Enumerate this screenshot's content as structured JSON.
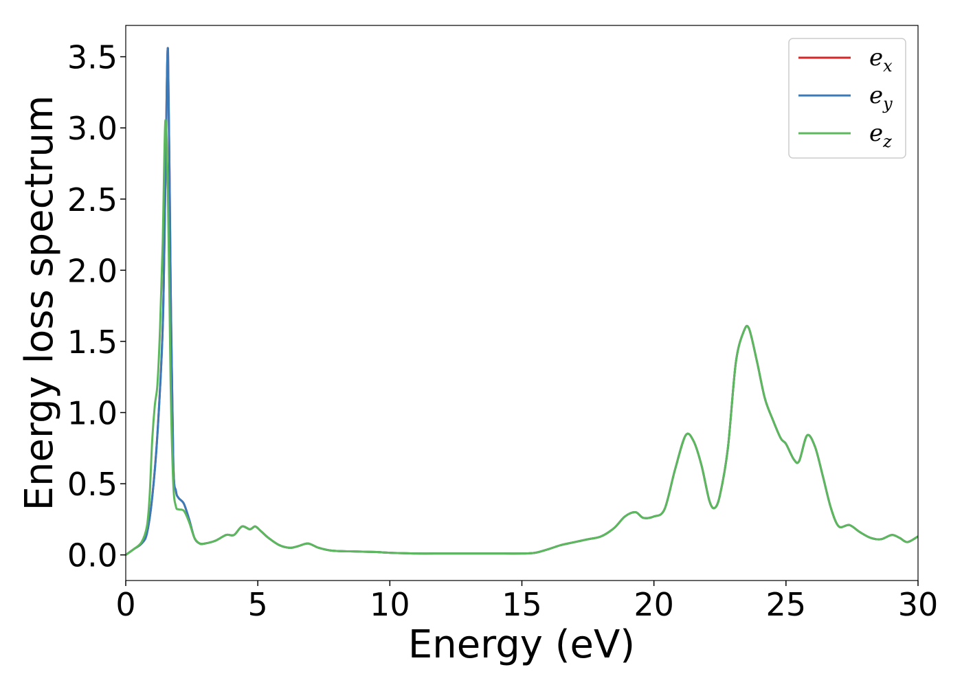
{
  "chart_data": {
    "type": "line",
    "title": "",
    "xlabel": "Energy (eV)",
    "ylabel": "Energy loss spectrum",
    "xlim": [
      0,
      30
    ],
    "ylim": [
      -0.18,
      3.72
    ],
    "x_ticks": [
      0,
      5,
      10,
      15,
      20,
      25,
      30
    ],
    "y_ticks": [
      0.0,
      0.5,
      1.0,
      1.5,
      2.0,
      2.5,
      3.0,
      3.5
    ],
    "x_tick_labels": [
      "0",
      "5",
      "10",
      "15",
      "20",
      "25",
      "30"
    ],
    "y_tick_labels": [
      "0.0",
      "0.5",
      "1.0",
      "1.5",
      "2.0",
      "2.5",
      "3.0",
      "3.5"
    ],
    "grid": false,
    "legend": {
      "position": "top-right",
      "entries": [
        {
          "base": "e",
          "sub": "x",
          "color": "#d62728"
        },
        {
          "base": "e",
          "sub": "y",
          "color": "#3a7ab8"
        },
        {
          "base": "e",
          "sub": "z",
          "color": "#5cb85c"
        }
      ]
    },
    "series": [
      {
        "color": "#d62728",
        "x": [
          0,
          0.3,
          0.6,
          0.8,
          1.0,
          1.2,
          1.4,
          1.5,
          1.6,
          1.7,
          1.8,
          1.9,
          2.0,
          2.2,
          2.4,
          2.6,
          2.8,
          3.0,
          3.4,
          3.8,
          4.1,
          4.4,
          4.7,
          4.9,
          5.1,
          5.4,
          5.8,
          6.2,
          6.5,
          6.9,
          7.3,
          7.8,
          8.5,
          9.5,
          10,
          11,
          12,
          13,
          14,
          15,
          15.5,
          16,
          16.5,
          17,
          17.5,
          18,
          18.5,
          18.9,
          19.3,
          19.6,
          20,
          20.4,
          20.8,
          21.2,
          21.5,
          21.8,
          22.1,
          22.3,
          22.5,
          22.8,
          23.1,
          23.4,
          23.6,
          23.9,
          24.2,
          24.5,
          24.8,
          25.0,
          25.3,
          25.5,
          25.8,
          26.1,
          26.4,
          26.7,
          27.0,
          27.4,
          27.8,
          28.2,
          28.6,
          29.0,
          29.3,
          29.6,
          30.0
        ],
        "y": [
          0.0,
          0.04,
          0.08,
          0.15,
          0.4,
          0.85,
          1.6,
          2.6,
          3.55,
          1.9,
          0.65,
          0.45,
          0.4,
          0.36,
          0.25,
          0.12,
          0.08,
          0.08,
          0.1,
          0.14,
          0.14,
          0.2,
          0.18,
          0.2,
          0.17,
          0.12,
          0.07,
          0.05,
          0.06,
          0.08,
          0.05,
          0.03,
          0.025,
          0.02,
          0.015,
          0.01,
          0.01,
          0.01,
          0.01,
          0.01,
          0.015,
          0.04,
          0.07,
          0.09,
          0.11,
          0.13,
          0.19,
          0.27,
          0.3,
          0.26,
          0.27,
          0.32,
          0.6,
          0.84,
          0.8,
          0.63,
          0.38,
          0.33,
          0.42,
          0.75,
          1.35,
          1.57,
          1.59,
          1.36,
          1.1,
          0.95,
          0.82,
          0.78,
          0.67,
          0.66,
          0.84,
          0.76,
          0.55,
          0.33,
          0.2,
          0.21,
          0.16,
          0.12,
          0.11,
          0.14,
          0.12,
          0.09,
          0.13
        ]
      },
      {
        "color": "#3a7ab8",
        "x": [
          0,
          0.3,
          0.6,
          0.8,
          1.0,
          1.2,
          1.4,
          1.5,
          1.6,
          1.7,
          1.8,
          1.9,
          2.0,
          2.2,
          2.4,
          2.6,
          2.8,
          3.0,
          3.4,
          3.8,
          4.1,
          4.4,
          4.7,
          4.9,
          5.1,
          5.4,
          5.8,
          6.2,
          6.5,
          6.9,
          7.3,
          7.8,
          8.5,
          9.5,
          10,
          11,
          12,
          13,
          14,
          15,
          15.5,
          16,
          16.5,
          17,
          17.5,
          18,
          18.5,
          18.9,
          19.3,
          19.6,
          20,
          20.4,
          20.8,
          21.2,
          21.5,
          21.8,
          22.1,
          22.3,
          22.5,
          22.8,
          23.1,
          23.4,
          23.6,
          23.9,
          24.2,
          24.5,
          24.8,
          25.0,
          25.3,
          25.5,
          25.8,
          26.1,
          26.4,
          26.7,
          27.0,
          27.4,
          27.8,
          28.2,
          28.6,
          29.0,
          29.3,
          29.6,
          30.0
        ],
        "y": [
          0.0,
          0.04,
          0.08,
          0.15,
          0.4,
          0.85,
          1.6,
          2.6,
          3.55,
          1.9,
          0.65,
          0.45,
          0.4,
          0.36,
          0.25,
          0.12,
          0.08,
          0.08,
          0.1,
          0.14,
          0.14,
          0.2,
          0.18,
          0.2,
          0.17,
          0.12,
          0.07,
          0.05,
          0.06,
          0.08,
          0.05,
          0.03,
          0.025,
          0.02,
          0.015,
          0.01,
          0.01,
          0.01,
          0.01,
          0.01,
          0.015,
          0.04,
          0.07,
          0.09,
          0.11,
          0.13,
          0.19,
          0.27,
          0.3,
          0.26,
          0.27,
          0.32,
          0.6,
          0.84,
          0.8,
          0.63,
          0.38,
          0.33,
          0.42,
          0.75,
          1.35,
          1.57,
          1.59,
          1.36,
          1.1,
          0.95,
          0.82,
          0.78,
          0.67,
          0.66,
          0.84,
          0.76,
          0.55,
          0.33,
          0.2,
          0.21,
          0.16,
          0.12,
          0.11,
          0.14,
          0.12,
          0.09,
          0.13
        ]
      },
      {
        "color": "#5cb85c",
        "x": [
          0,
          0.3,
          0.6,
          0.8,
          0.9,
          1.0,
          1.1,
          1.2,
          1.3,
          1.4,
          1.5,
          1.6,
          1.7,
          1.8,
          1.9,
          2.0,
          2.2,
          2.4,
          2.6,
          2.8,
          3.0,
          3.4,
          3.8,
          4.1,
          4.4,
          4.7,
          4.9,
          5.1,
          5.4,
          5.8,
          6.2,
          6.5,
          6.9,
          7.3,
          7.8,
          8.5,
          9.5,
          10,
          11,
          12,
          13,
          14,
          15,
          15.5,
          16,
          16.5,
          17,
          17.5,
          18,
          18.5,
          18.9,
          19.3,
          19.6,
          20,
          20.4,
          20.8,
          21.2,
          21.5,
          21.8,
          22.1,
          22.3,
          22.5,
          22.8,
          23.1,
          23.4,
          23.6,
          23.9,
          24.2,
          24.5,
          24.8,
          25.0,
          25.3,
          25.5,
          25.8,
          26.1,
          26.4,
          26.7,
          27.0,
          27.4,
          27.8,
          28.2,
          28.6,
          29.0,
          29.3,
          29.6,
          30.0
        ],
        "y": [
          0.0,
          0.04,
          0.09,
          0.2,
          0.4,
          0.8,
          1.05,
          1.2,
          1.6,
          2.2,
          3.05,
          2.5,
          1.2,
          0.5,
          0.34,
          0.32,
          0.31,
          0.23,
          0.12,
          0.08,
          0.08,
          0.1,
          0.14,
          0.14,
          0.2,
          0.18,
          0.2,
          0.17,
          0.12,
          0.07,
          0.05,
          0.06,
          0.08,
          0.05,
          0.03,
          0.025,
          0.02,
          0.015,
          0.01,
          0.01,
          0.01,
          0.01,
          0.01,
          0.015,
          0.04,
          0.07,
          0.09,
          0.11,
          0.13,
          0.19,
          0.27,
          0.3,
          0.26,
          0.27,
          0.32,
          0.6,
          0.84,
          0.8,
          0.63,
          0.38,
          0.33,
          0.42,
          0.75,
          1.35,
          1.57,
          1.59,
          1.36,
          1.1,
          0.95,
          0.82,
          0.78,
          0.67,
          0.66,
          0.84,
          0.76,
          0.55,
          0.33,
          0.2,
          0.21,
          0.16,
          0.12,
          0.11,
          0.14,
          0.12,
          0.09,
          0.13
        ]
      }
    ]
  }
}
